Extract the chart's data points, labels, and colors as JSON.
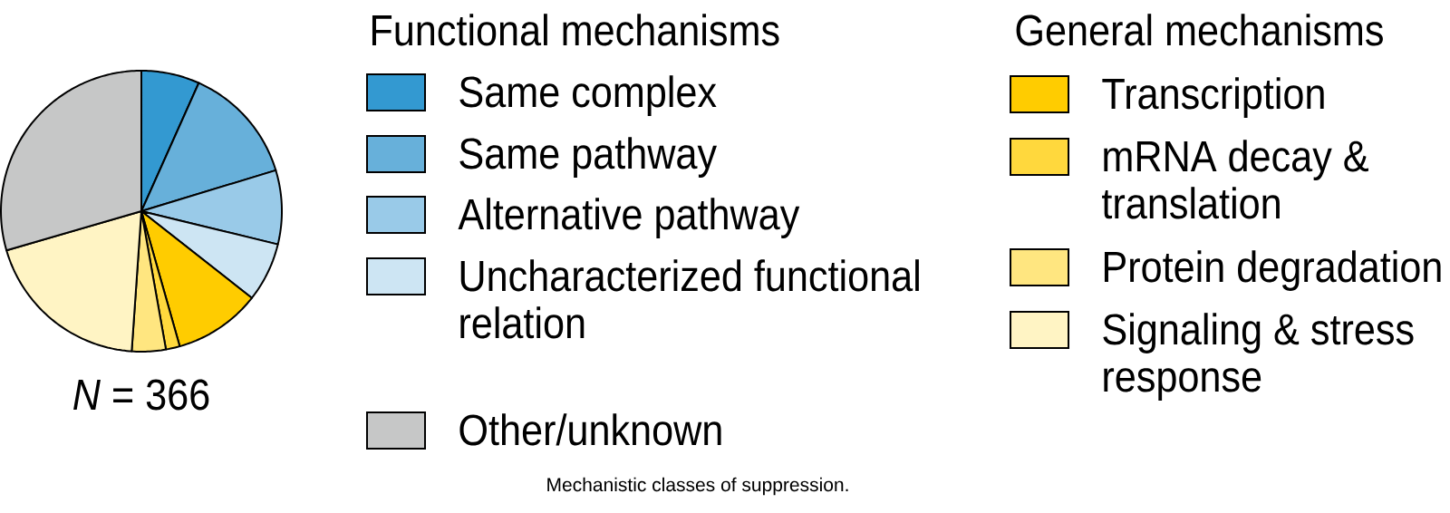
{
  "chart_data": {
    "type": "pie",
    "categories": [
      "Same complex",
      "Same pathway",
      "Alternative pathway",
      "Uncharacterized functional relation",
      "Transcription",
      "mRNA decay & translation",
      "Protein degradation",
      "Signaling & stress response",
      "Other/unknown"
    ],
    "values": [
      6.7,
      13.6,
      8.5,
      6.8,
      10.0,
      1.6,
      3.9,
      19.4,
      29.5
    ],
    "colors": [
      "#3399d1",
      "#67b0da",
      "#99cae8",
      "#cde5f3",
      "#ffcc00",
      "#ffd83d",
      "#ffe680",
      "#fff4c4",
      "#c6c7c7"
    ],
    "legend": "right",
    "annotations": [
      "*N* = 366",
      "Functional mechanisms",
      "General mechanisms",
      "Mechanistic classes of suppression."
    ]
  }
}
